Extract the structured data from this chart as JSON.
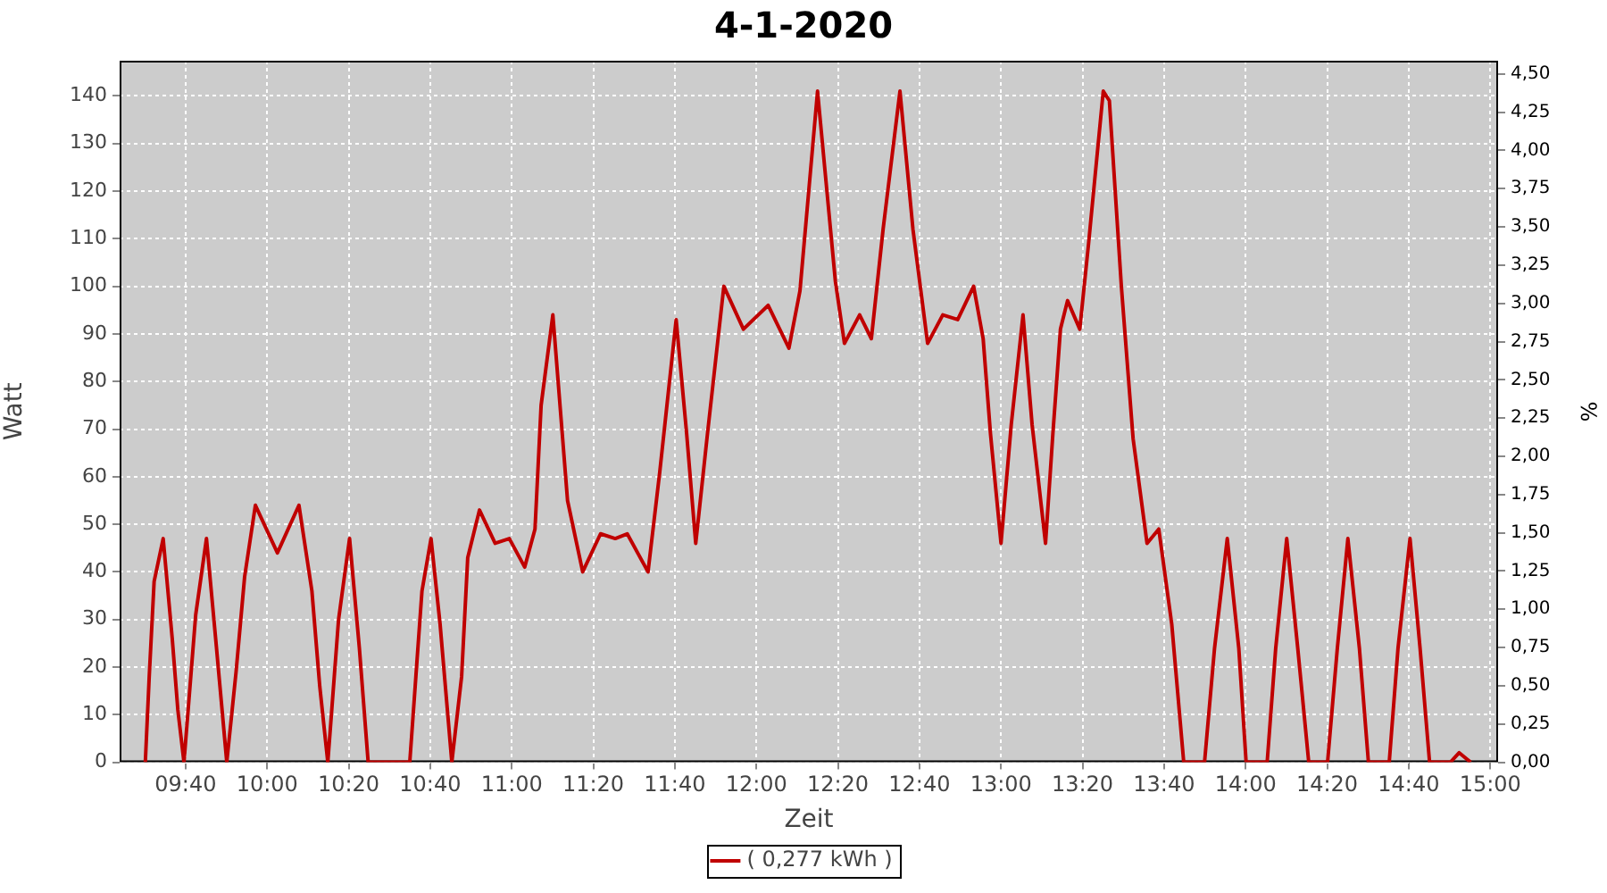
{
  "chart_data": {
    "type": "line",
    "title": "4-1-2020",
    "xlabel": "Zeit",
    "ylabel": "Watt",
    "y2label": "%",
    "x": [
      9.502,
      9.518,
      9.538,
      9.575,
      9.612,
      9.635,
      9.66,
      9.708,
      9.752,
      9.793,
      9.835,
      9.873,
      9.908,
      9.952,
      10.042,
      10.13,
      10.183,
      10.215,
      10.248,
      10.292,
      10.337,
      10.377,
      10.413,
      10.583,
      10.608,
      10.633,
      10.67,
      10.707,
      10.755,
      10.795,
      10.82,
      10.868,
      10.932,
      10.99,
      11.053,
      11.095,
      11.12,
      11.168,
      11.228,
      11.29,
      11.363,
      11.423,
      11.472,
      11.557,
      11.605,
      11.672,
      11.715,
      11.752,
      11.8,
      11.867,
      11.947,
      12.048,
      12.133,
      12.178,
      12.25,
      12.323,
      12.36,
      12.422,
      12.47,
      12.518,
      12.587,
      12.64,
      12.7,
      12.762,
      12.823,
      12.888,
      12.927,
      12.957,
      13.0,
      13.042,
      13.09,
      13.127,
      13.182,
      13.212,
      13.243,
      13.272,
      13.322,
      13.358,
      13.418,
      13.443,
      13.492,
      13.54,
      13.597,
      13.645,
      13.698,
      13.747,
      13.832,
      13.873,
      13.925,
      13.972,
      14.002,
      14.088,
      14.123,
      14.168,
      14.213,
      14.258,
      14.335,
      14.375,
      14.418,
      14.465,
      14.502,
      14.587,
      14.623,
      14.672,
      14.713,
      14.752,
      14.837,
      14.873,
      14.92
    ],
    "series": [
      {
        "name": "( 0,277 kWh )",
        "color": "#c00000",
        "values": [
          0,
          18,
          38,
          47,
          26,
          11,
          0,
          31,
          47,
          24,
          0,
          19,
          39,
          54,
          44,
          54,
          36,
          16,
          0,
          30,
          47,
          24,
          0,
          0,
          18,
          36,
          47,
          29,
          0,
          18,
          43,
          53,
          46,
          47,
          41,
          49,
          75,
          94,
          55,
          40,
          48,
          47,
          48,
          40,
          61,
          93,
          69,
          46,
          69,
          100,
          91,
          96,
          87,
          99,
          141,
          101,
          88,
          94,
          89,
          112,
          141,
          112,
          88,
          94,
          93,
          100,
          89,
          69,
          46,
          71,
          94,
          71,
          46,
          69,
          91,
          97,
          91,
          109,
          141,
          139,
          100,
          68,
          46,
          49,
          29,
          0,
          0,
          24,
          47,
          24,
          0,
          0,
          24,
          47,
          24,
          0,
          0,
          24,
          47,
          24,
          0,
          0,
          24,
          47,
          24,
          0,
          0,
          2,
          0
        ]
      }
    ],
    "xlim": [
      9.397,
      15.032
    ],
    "xticks": [
      {
        "value": 9.6667,
        "label": "09:40"
      },
      {
        "value": 10,
        "label": "10:00"
      },
      {
        "value": 10.3333,
        "label": "10:20"
      },
      {
        "value": 10.6667,
        "label": "10:40"
      },
      {
        "value": 11,
        "label": "11:00"
      },
      {
        "value": 11.3333,
        "label": "11:20"
      },
      {
        "value": 11.6667,
        "label": "11:40"
      },
      {
        "value": 12,
        "label": "12:00"
      },
      {
        "value": 12.3333,
        "label": "12:20"
      },
      {
        "value": 12.6667,
        "label": "12:40"
      },
      {
        "value": 13,
        "label": "13:00"
      },
      {
        "value": 13.3333,
        "label": "13:20"
      },
      {
        "value": 13.6667,
        "label": "13:40"
      },
      {
        "value": 14,
        "label": "14:00"
      },
      {
        "value": 14.3333,
        "label": "14:20"
      },
      {
        "value": 14.6667,
        "label": "14:40"
      },
      {
        "value": 15,
        "label": "15:00"
      }
    ],
    "ylim": [
      0,
      147.4
    ],
    "yticks": [
      0,
      10,
      20,
      30,
      40,
      50,
      60,
      70,
      80,
      90,
      100,
      110,
      120,
      130,
      140
    ],
    "y2lim": [
      0,
      4.586
    ],
    "y2ticks": [
      {
        "value": 0,
        "label": "0,00"
      },
      {
        "value": 0.25,
        "label": "0,25"
      },
      {
        "value": 0.5,
        "label": "0,50"
      },
      {
        "value": 0.75,
        "label": "0,75"
      },
      {
        "value": 1,
        "label": "1,00"
      },
      {
        "value": 1.25,
        "label": "1,25"
      },
      {
        "value": 1.5,
        "label": "1,50"
      },
      {
        "value": 1.75,
        "label": "1,75"
      },
      {
        "value": 2,
        "label": "2,00"
      },
      {
        "value": 2.25,
        "label": "2,25"
      },
      {
        "value": 2.5,
        "label": "2,50"
      },
      {
        "value": 2.75,
        "label": "2,75"
      },
      {
        "value": 3,
        "label": "3,00"
      },
      {
        "value": 3.25,
        "label": "3,25"
      },
      {
        "value": 3.5,
        "label": "3,50"
      },
      {
        "value": 3.75,
        "label": "3,75"
      },
      {
        "value": 4,
        "label": "4,00"
      },
      {
        "value": 4.25,
        "label": "4,25"
      },
      {
        "value": 4.5,
        "label": "4,50"
      }
    ],
    "grid": true,
    "legend": "bottom",
    "marker": "none"
  }
}
